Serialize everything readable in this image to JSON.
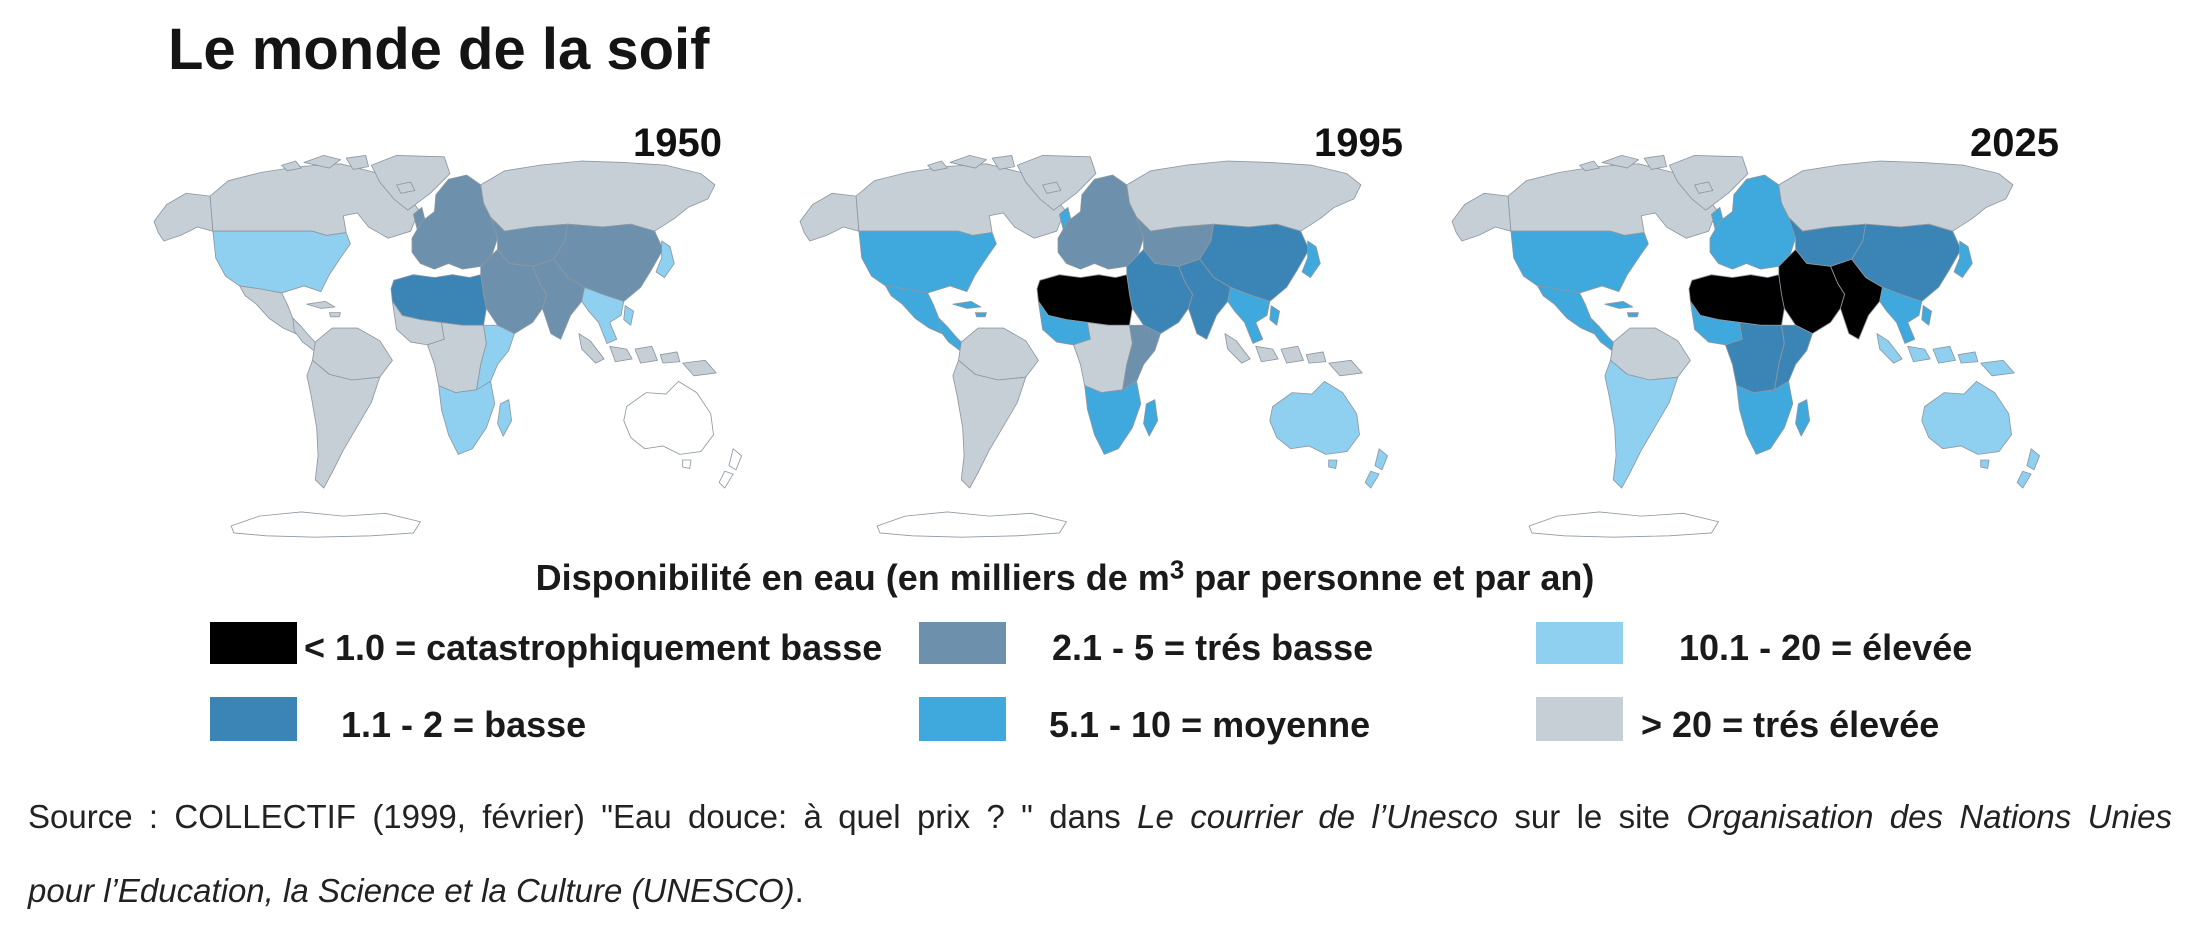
{
  "title": "Le monde de la soif",
  "legend": {
    "title": "Disponibilité en eau (en milliers de m",
    "title_superscript": "3",
    "title_end": " par personne et par an)",
    "items": [
      {
        "label": "< 1.0 = catastrophiquement basse",
        "color": "#000000"
      },
      {
        "label": "1.1 - 2 = basse",
        "color": "#3a84b6"
      },
      {
        "label": "2.1 - 5 = trés basse",
        "color": "#6d91ac"
      },
      {
        "label": "5.1 - 10 = moyenne",
        "color": "#3fa8dc"
      },
      {
        "label": "10.1 - 20 = élevée",
        "color": "#8fd0f0"
      },
      {
        "label": "> 20 = trés élevée",
        "color": "#c6ced6"
      }
    ]
  },
  "maps": [
    {
      "year": "1950",
      "regions": {
        "alaska": 5,
        "canada": 5,
        "arctic_islands": 5,
        "greenland": 5,
        "iceland": 5,
        "usa": 4,
        "mexico": 5,
        "central_america": 5,
        "caribbean": 5,
        "south_america_north": 5,
        "south_america_south": 5,
        "uk": 2,
        "europe": 2,
        "russia": 5,
        "central_asia": 2,
        "middle_east": 2,
        "south_asia": 2,
        "china": 2,
        "japan": 4,
        "southeast_asia": 4,
        "philippines": 4,
        "indonesia": 5,
        "north_africa": 1,
        "west_africa": 5,
        "central_africa": 5,
        "east_africa": 4,
        "southern_africa": 4,
        "madagascar": 4
      }
    },
    {
      "year": "1995",
      "regions": {
        "alaska": 5,
        "canada": 5,
        "arctic_islands": 5,
        "greenland": 5,
        "iceland": 5,
        "usa": 3,
        "mexico": 3,
        "central_america": 3,
        "caribbean": 3,
        "south_america_north": 5,
        "south_america_south": 5,
        "uk": 3,
        "europe": 2,
        "russia": 5,
        "central_asia": 2,
        "middle_east": 1,
        "south_asia": 1,
        "china": 1,
        "japan": 3,
        "southeast_asia": 3,
        "philippines": 3,
        "indonesia": 5,
        "north_africa": 0,
        "west_africa": 3,
        "central_africa": 5,
        "east_africa": 2,
        "southern_africa": 3,
        "madagascar": 3,
        "australia": 4,
        "new_zealand": 4
      }
    },
    {
      "year": "2025",
      "regions": {
        "alaska": 5,
        "canada": 5,
        "arctic_islands": 5,
        "greenland": 5,
        "iceland": 5,
        "usa": 3,
        "mexico": 3,
        "central_america": 3,
        "caribbean": 3,
        "south_america_north": 5,
        "south_america_south": 4,
        "uk": 3,
        "europe": 3,
        "russia": 5,
        "central_asia": 1,
        "middle_east": 0,
        "south_asia": 0,
        "china": 1,
        "japan": 3,
        "southeast_asia": 3,
        "philippines": 3,
        "indonesia": 4,
        "north_africa": 0,
        "west_africa": 3,
        "central_africa": 1,
        "east_africa": 1,
        "southern_africa": 3,
        "madagascar": 3,
        "australia": 4,
        "new_zealand": 4
      }
    }
  ],
  "source": {
    "line1": {
      "text1": "Source : COLLECTIF (1999, février) \"Eau douce: à quel prix ? \" dans ",
      "italic1": "Le courrier de l’Unesco",
      "text2": " sur le site ",
      "italic2": "Organisation des Nations Unies"
    },
    "line2": {
      "italic": "pour l’Education, la Science et la Culture (UNESCO)",
      "text": "."
    }
  }
}
